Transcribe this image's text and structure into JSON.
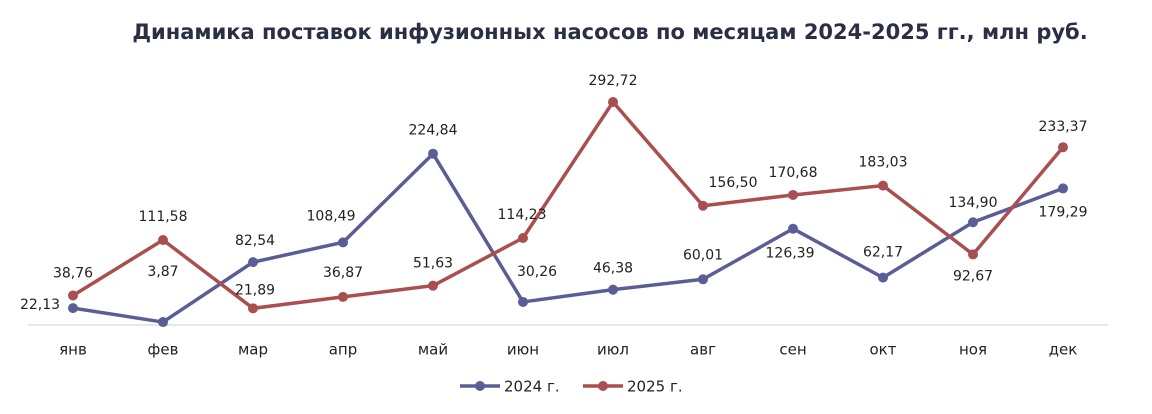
{
  "chart_data": {
    "type": "line",
    "title": "Динамика поставок инфузионных насосов по месяцам 2024-2025 гг., млн руб.",
    "categories": [
      "янв",
      "фев",
      "мар",
      "апр",
      "май",
      "июн",
      "июл",
      "авг",
      "сен",
      "окт",
      "ноя",
      "дек"
    ],
    "series": [
      {
        "name": "2024 г.",
        "color": "#5b5e96",
        "values": [
          22.13,
          3.87,
          82.54,
          108.49,
          224.84,
          30.26,
          46.38,
          60.01,
          126.39,
          62.17,
          134.9,
          179.29
        ],
        "value_labels": [
          "22,13",
          "3,87",
          "82,54",
          "108,49",
          "224,84",
          "30,26",
          "46,38",
          "60,01",
          "126,39",
          "62,17",
          "134,90",
          "179,29"
        ]
      },
      {
        "name": "2025 г.",
        "color": "#aa4f4f",
        "values": [
          38.76,
          111.58,
          21.89,
          36.87,
          51.63,
          114.23,
          292.72,
          156.5,
          170.68,
          183.03,
          92.67,
          233.37
        ],
        "value_labels": [
          "38,76",
          "111,58",
          "21,89",
          "36,87",
          "51,63",
          "114,23",
          "292,72",
          "156,50",
          "170,68",
          "183,03",
          "92,67",
          "233,37"
        ]
      }
    ],
    "legend": "bottom"
  }
}
